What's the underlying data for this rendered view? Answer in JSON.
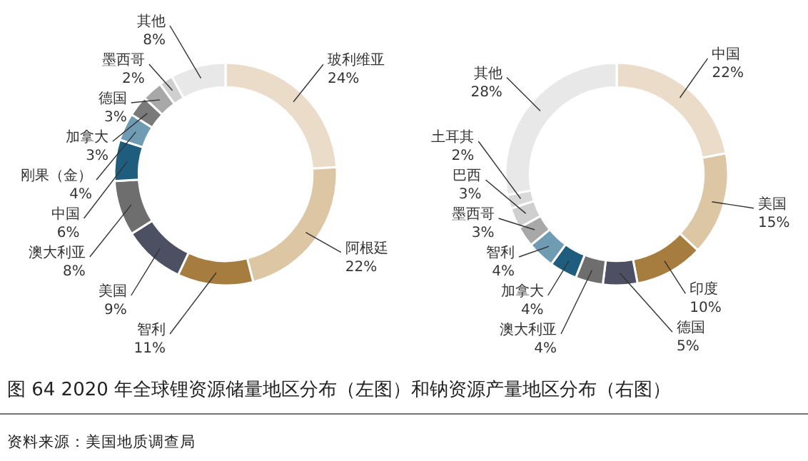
{
  "chart_data": [
    {
      "type": "donut",
      "categories": [
        "玻利维亚",
        "阿根廷",
        "智利",
        "美国",
        "澳大利亚",
        "中国",
        "刚果（金）",
        "加拿大",
        "德国",
        "墨西哥",
        "其他"
      ],
      "values": [
        24,
        22,
        11,
        9,
        8,
        6,
        4,
        3,
        3,
        2,
        8
      ],
      "colors": [
        "#eadcc8",
        "#dcc6a4",
        "#a67c3f",
        "#4d4f63",
        "#6e6e6e",
        "#1f5d7e",
        "#6f9bb3",
        "#7a7a7a",
        "#a8a8a8",
        "#cfcfcf",
        "#e8e8e8"
      ],
      "value_labels": [
        "24%",
        "22%",
        "11%",
        "9%",
        "8%",
        "6%",
        "4%",
        "3%",
        "3%",
        "2%",
        "8%"
      ],
      "annotations": [
        "图 64 2020 年全球锂资源储量地区分布（左图）和钠资源产量地区分布（右图）",
        "资料来源：美国地质调查局"
      ]
    },
    {
      "type": "donut",
      "categories": [
        "中国",
        "美国",
        "印度",
        "德国",
        "澳大利亚",
        "加拿大",
        "智利",
        "墨西哥",
        "巴西",
        "土耳其",
        "其他"
      ],
      "values": [
        22,
        15,
        10,
        5,
        4,
        4,
        4,
        3,
        3,
        2,
        28
      ],
      "colors": [
        "#eadcc8",
        "#dcc6a4",
        "#a67c3f",
        "#4d4f63",
        "#6e6e6e",
        "#1f5d7e",
        "#6f9bb3",
        "#a8a8a8",
        "#cfcfcf",
        "#d9d9d9",
        "#e8e8e8"
      ],
      "value_labels": [
        "22%",
        "15%",
        "10%",
        "5%",
        "4%",
        "4%",
        "4%",
        "3%",
        "3%",
        "2%",
        "28%"
      ]
    }
  ]
}
